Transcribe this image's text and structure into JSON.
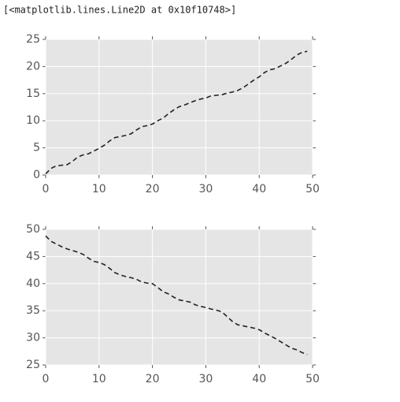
{
  "output_text": "[<matplotlib.lines.Line2D at 0x10f10748>]",
  "chart_data": [
    {
      "type": "line",
      "grid": true,
      "line_style": "dashed",
      "x": [
        0,
        1,
        2,
        3,
        4,
        5,
        6,
        7,
        8,
        9,
        10,
        11,
        12,
        13,
        14,
        15,
        16,
        17,
        18,
        19,
        20,
        21,
        22,
        23,
        24,
        25,
        26,
        27,
        28,
        29,
        30,
        31,
        32,
        33,
        34,
        35,
        36,
        37,
        38,
        39,
        40,
        41,
        42,
        43,
        44,
        45,
        46,
        47,
        48,
        49
      ],
      "series": [
        {
          "color": "#222222",
          "values": [
            0.2,
            1.2,
            1.7,
            1.8,
            1.9,
            2.5,
            3.3,
            3.7,
            3.9,
            4.4,
            4.9,
            5.5,
            6.3,
            6.9,
            7.1,
            7.3,
            7.6,
            8.3,
            8.9,
            9.1,
            9.4,
            10.0,
            10.5,
            11.3,
            12.0,
            12.6,
            12.9,
            13.3,
            13.7,
            14.0,
            14.2,
            14.6,
            14.7,
            14.8,
            15.1,
            15.3,
            15.6,
            16.1,
            16.8,
            17.5,
            18.1,
            18.9,
            19.4,
            19.6,
            20.1,
            20.6,
            21.3,
            22.1,
            22.6,
            22.8
          ]
        }
      ],
      "xlim": [
        0,
        50
      ],
      "xticks": [
        0,
        10,
        20,
        30,
        40,
        50
      ],
      "ylim": [
        0,
        25
      ],
      "yticks": [
        0,
        5,
        10,
        15,
        20,
        25
      ]
    },
    {
      "type": "line",
      "grid": true,
      "line_style": "dashed",
      "x": [
        0,
        1,
        2,
        3,
        4,
        5,
        6,
        7,
        8,
        9,
        10,
        11,
        12,
        13,
        14,
        15,
        16,
        17,
        18,
        19,
        20,
        21,
        22,
        23,
        24,
        25,
        26,
        27,
        28,
        29,
        30,
        31,
        32,
        33,
        34,
        35,
        36,
        37,
        38,
        39,
        40,
        41,
        42,
        43,
        44,
        45,
        46,
        47,
        48,
        49
      ],
      "series": [
        {
          "color": "#222222",
          "values": [
            48.8,
            47.8,
            47.3,
            46.8,
            46.4,
            46.1,
            45.8,
            45.4,
            44.7,
            44.1,
            43.9,
            43.5,
            42.8,
            42.0,
            41.6,
            41.3,
            41.1,
            40.8,
            40.3,
            40.1,
            40.0,
            39.3,
            38.5,
            38.1,
            37.5,
            37.0,
            36.8,
            36.6,
            36.1,
            35.8,
            35.6,
            35.3,
            35.1,
            34.8,
            33.9,
            33.0,
            32.4,
            32.2,
            32.0,
            31.8,
            31.5,
            30.9,
            30.4,
            29.9,
            29.3,
            28.7,
            28.1,
            27.8,
            27.3,
            26.9
          ]
        }
      ],
      "xlim": [
        0,
        50
      ],
      "xticks": [
        0,
        10,
        20,
        30,
        40,
        50
      ],
      "ylim": [
        25,
        50
      ],
      "yticks": [
        25,
        30,
        35,
        40,
        45,
        50
      ]
    }
  ]
}
